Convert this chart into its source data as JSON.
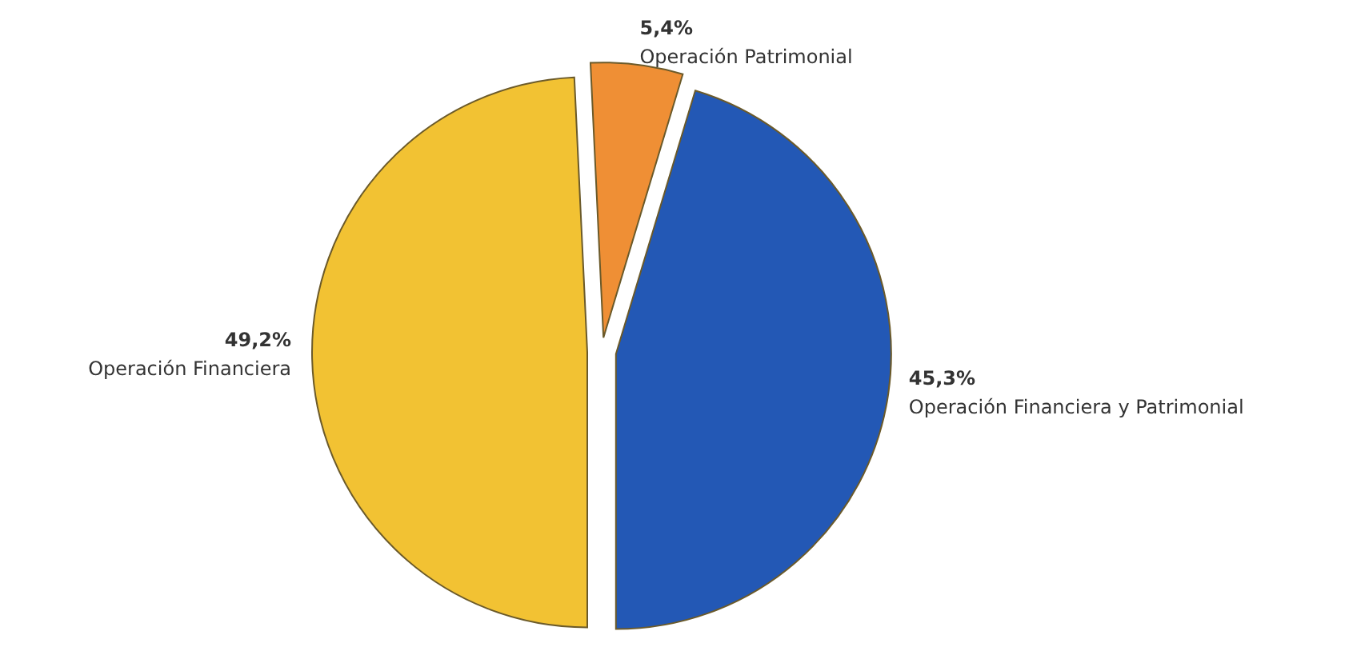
{
  "chart_data": {
    "type": "pie",
    "categories": [
      "Operación Financiera",
      "Operación Patrimonial",
      "Operación Financiera y Patrimonial"
    ],
    "values": [
      49.2,
      5.4,
      45.3
    ],
    "colors": [
      "#f2c233",
      "#ef8f35",
      "#2358b5"
    ],
    "value_labels": [
      "49,2%",
      "5,4%",
      "45,3%"
    ],
    "legend": false
  }
}
